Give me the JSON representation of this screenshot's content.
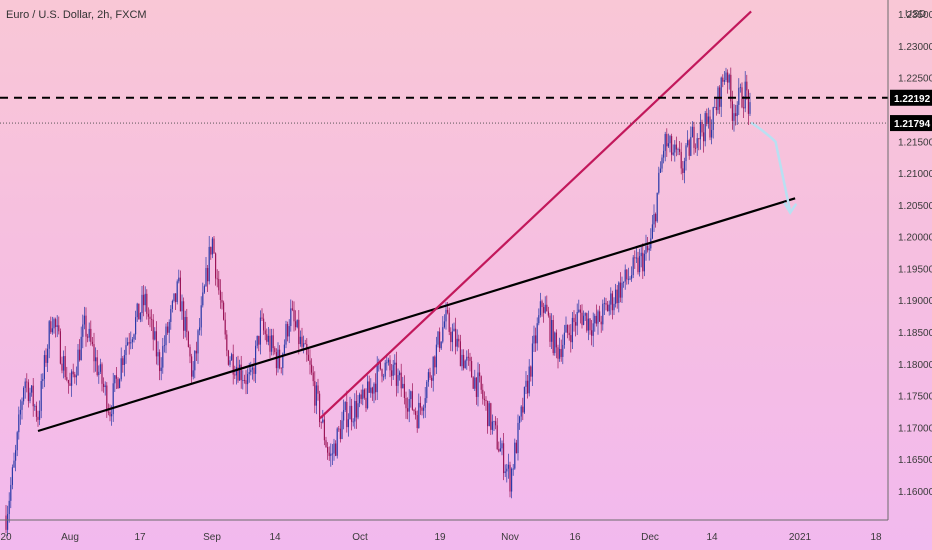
{
  "chart_data": {
    "type": "candlestick",
    "symbol_label": "Euro / U.S. Dollar, 2h, FXCM",
    "currency": "USD",
    "grid": false,
    "y_range": [
      1.1555,
      1.2373
    ],
    "y_ticks": [
      "1.23500",
      "1.23000",
      "1.22500",
      "1.21500",
      "1.21000",
      "1.20500",
      "1.20000",
      "1.19500",
      "1.19000",
      "1.18500",
      "1.18000",
      "1.17500",
      "1.17000",
      "1.16500",
      "1.16000"
    ],
    "x_ticks": [
      "20",
      "Aug",
      "17",
      "Sep",
      "14",
      "Oct",
      "19",
      "Nov",
      "16",
      "Dec",
      "14",
      "2021",
      "18"
    ],
    "price_tags": [
      {
        "label": "1.22192",
        "value": 1.22192,
        "style": "dashed",
        "bg": "#000000"
      },
      {
        "label": "1.21794",
        "value": 1.21794,
        "style": "dotted",
        "bg": "#000000"
      }
    ],
    "trendlines": [
      {
        "name": "support",
        "color": "#000000",
        "from": {
          "x": "Jul 27",
          "y": 1.1695
        },
        "to": {
          "x": "Dec 31",
          "y": 1.2061
        }
      },
      {
        "name": "rising-wedge",
        "color": "#c2185b",
        "from": {
          "x": "Sep 23",
          "y": 1.1715
        },
        "to": {
          "x": "Dec 22",
          "y": 1.2355
        }
      }
    ],
    "projection": {
      "color": "#b9e0f2",
      "points": [
        [
          "Dec 22",
          1.218
        ],
        [
          "Dec 25",
          1.2165
        ],
        [
          "Dec 27",
          1.215
        ],
        [
          "Dec 30",
          1.204
        ]
      ]
    },
    "price_path": [
      [
        1.1562,
        "Jul 20"
      ],
      [
        1.165,
        "Jul 22"
      ],
      [
        1.178,
        "Jul 24"
      ],
      [
        1.172,
        "Jul 27"
      ],
      [
        1.188,
        "Jul 30"
      ],
      [
        1.176,
        "Aug 3"
      ],
      [
        1.186,
        "Aug 6"
      ],
      [
        1.173,
        "Aug 11"
      ],
      [
        1.183,
        "Aug 14"
      ],
      [
        1.19,
        "Aug 18"
      ],
      [
        1.18,
        "Aug 21"
      ],
      [
        1.192,
        "Aug 25"
      ],
      [
        1.178,
        "Aug 28"
      ],
      [
        1.2,
        "Sep 1"
      ],
      [
        1.182,
        "Sep 4"
      ],
      [
        1.177,
        "Sep 9"
      ],
      [
        1.186,
        "Sep 11"
      ],
      [
        1.18,
        "Sep 15"
      ],
      [
        1.188,
        "Sep 17"
      ],
      [
        1.179,
        "Sep 21"
      ],
      [
        1.165,
        "Sep 25"
      ],
      [
        1.172,
        "Sep 28"
      ],
      [
        1.174,
        "Oct 2"
      ],
      [
        1.18,
        "Oct 6"
      ],
      [
        1.178,
        "Oct 9"
      ],
      [
        1.172,
        "Oct 14"
      ],
      [
        1.187,
        "Oct 20"
      ],
      [
        1.182,
        "Oct 23"
      ],
      [
        1.176,
        "Oct 27"
      ],
      [
        1.162,
        "Nov 2"
      ],
      [
        1.19,
        "Nov 9"
      ],
      [
        1.182,
        "Nov 12"
      ],
      [
        1.188,
        "Nov 17"
      ],
      [
        1.186,
        "Nov 20"
      ],
      [
        1.192,
        "Nov 25"
      ],
      [
        1.198,
        "Dec 1"
      ],
      [
        1.215,
        "Dec 4"
      ],
      [
        1.211,
        "Dec 8"
      ],
      [
        1.216,
        "Dec 10"
      ],
      [
        1.218,
        "Dec 14"
      ],
      [
        1.227,
        "Dec 17"
      ],
      [
        1.22,
        "Dec 18"
      ],
      [
        1.223,
        "Dec 21"
      ],
      [
        1.2179,
        "Dec 22"
      ]
    ]
  }
}
